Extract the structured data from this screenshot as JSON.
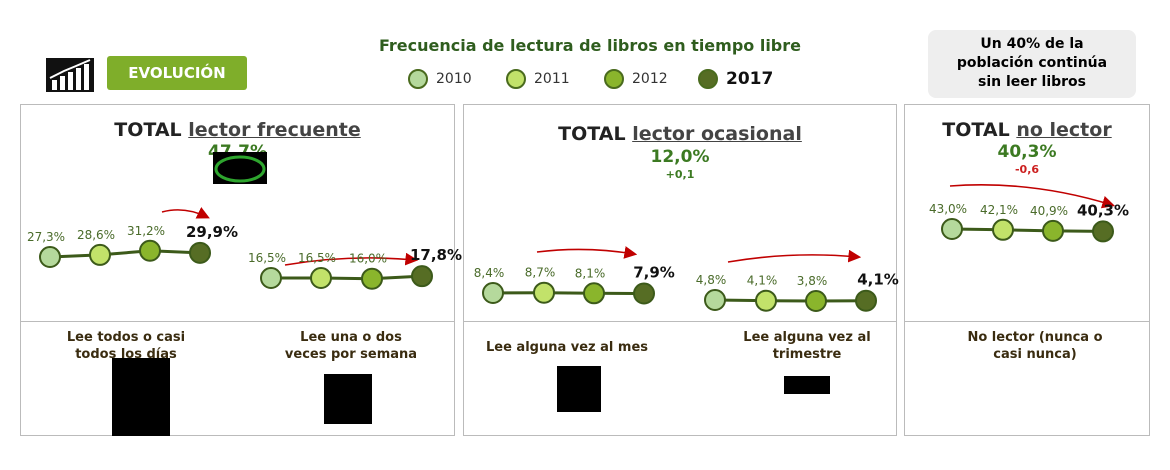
{
  "badge": "EVOLUCIÓN",
  "title": "Frecuencia de lectura de libros en tiempo libre",
  "legend": [
    {
      "label": "2010",
      "color": "#b5d99c"
    },
    {
      "label": "2011",
      "color": "#c2e26a"
    },
    {
      "label": "2012",
      "color": "#8ab52c"
    },
    {
      "label": "2017",
      "color": "#566d24"
    }
  ],
  "callout": {
    "line1": "Un 40% de la",
    "line2": "población continúa",
    "line3": "sin leer libros"
  },
  "panels": [
    {
      "prefix": "TOTAL ",
      "label": "lector frecuente",
      "value": "47,7%",
      "delta": ""
    },
    {
      "prefix": "TOTAL ",
      "label": "lector ocasional",
      "value": "12,0%",
      "delta": "+0,1"
    },
    {
      "prefix": "TOTAL ",
      "label": "no lector",
      "value": "40,3%",
      "delta": "-0,6"
    }
  ],
  "descriptions": [
    {
      "line1": "Lee todos o casi",
      "line2": "todos los días"
    },
    {
      "line1": "Lee una o dos",
      "line2": "veces por semana"
    },
    {
      "line1": "Lee alguna vez al mes",
      "line2": ""
    },
    {
      "line1": "Lee alguna vez al",
      "line2": "trimestre"
    },
    {
      "line1": "No lector (nunca o",
      "line2": "casi nunca)"
    }
  ],
  "chart_data": {
    "type": "line",
    "x": [
      "2010",
      "2011",
      "2012",
      "2017"
    ],
    "series": [
      {
        "name": "Lee todos o casi todos los días",
        "values": [
          27.3,
          28.6,
          31.2,
          29.9
        ],
        "labels": [
          "27,3%",
          "28,6%",
          "31,2%",
          "29,9%"
        ]
      },
      {
        "name": "Lee una o dos veces por semana",
        "values": [
          16.5,
          16.5,
          16.0,
          17.8
        ],
        "labels": [
          "16,5%",
          "16,5%",
          "16,0%",
          "17,8%"
        ]
      },
      {
        "name": "Lee alguna vez al mes",
        "values": [
          8.4,
          8.7,
          8.1,
          7.9
        ],
        "labels": [
          "8,4%",
          "8,7%",
          "8,1%",
          "7,9%"
        ]
      },
      {
        "name": "Lee alguna vez al trimestre",
        "values": [
          4.8,
          4.1,
          3.8,
          4.1
        ],
        "labels": [
          "4,8%",
          "4,1%",
          "3,8%",
          "4,1%"
        ]
      },
      {
        "name": "No lector (nunca o casi nunca)",
        "values": [
          43.0,
          42.1,
          40.9,
          40.3
        ],
        "labels": [
          "43,0%",
          "42,1%",
          "40,9%",
          "40,3%"
        ]
      }
    ]
  }
}
